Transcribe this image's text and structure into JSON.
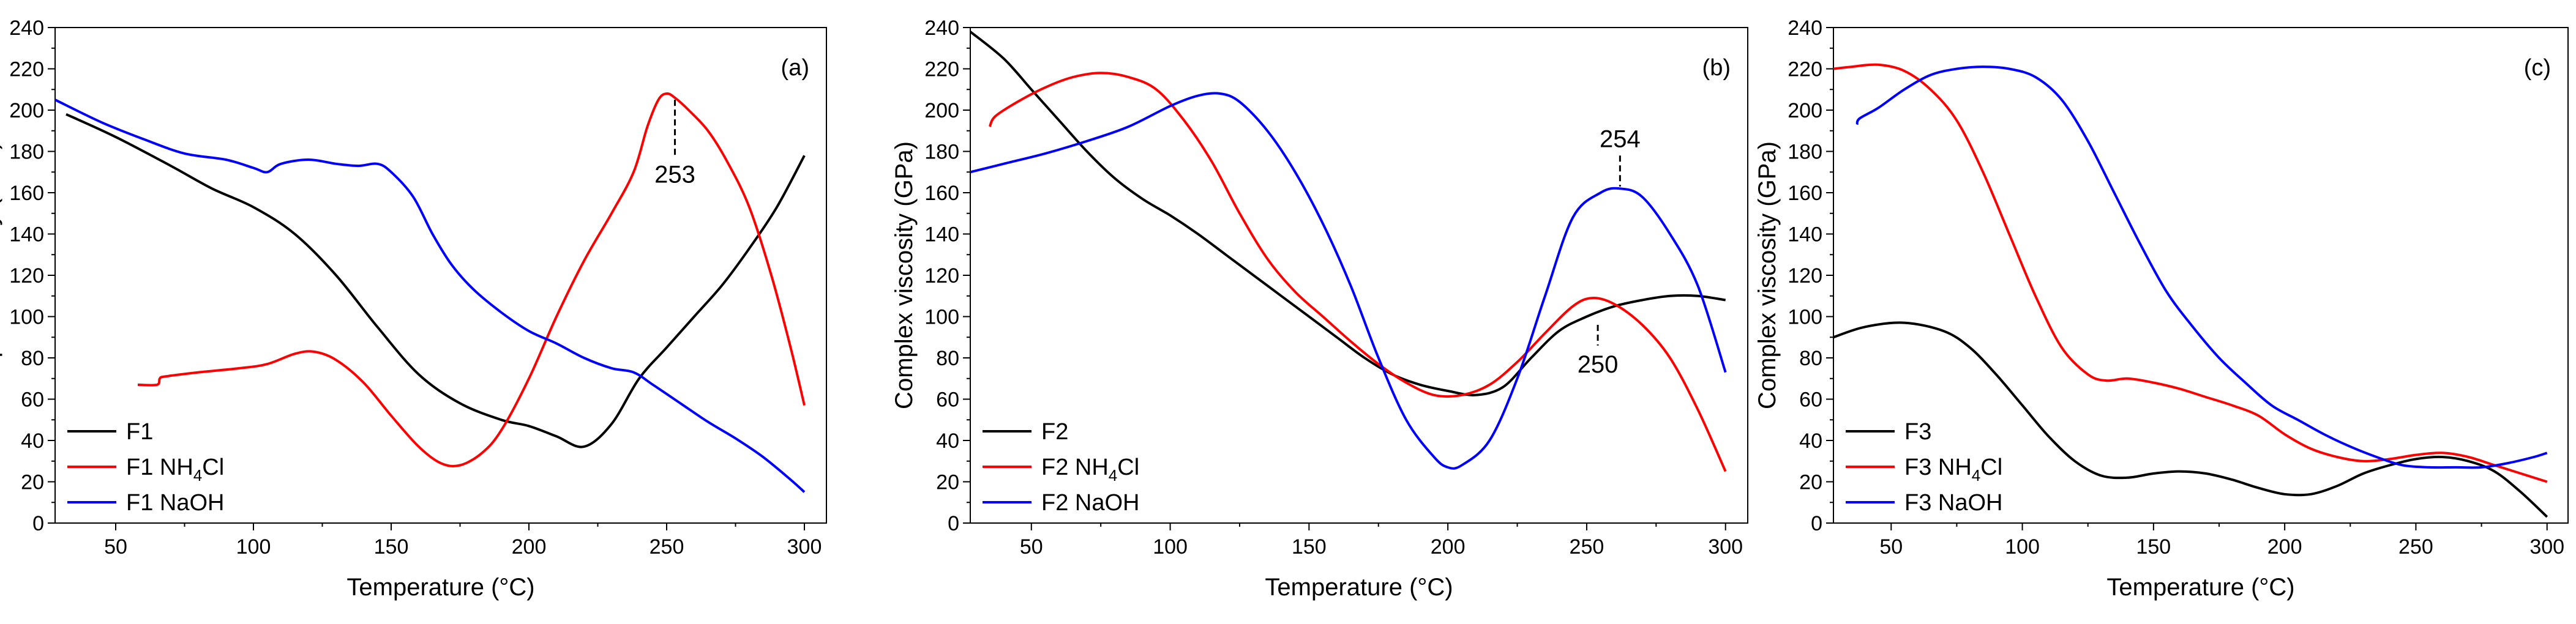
{
  "chart_data": [
    {
      "type": "line",
      "panel_label": "(a)",
      "xlabel": "Temperature (°C)",
      "ylabel": "Complex viscosity (GPa)",
      "xlim": [
        28,
        308
      ],
      "ylim": [
        0,
        240
      ],
      "xticks": [
        50,
        100,
        150,
        200,
        250,
        300
      ],
      "yticks": [
        0,
        20,
        40,
        60,
        80,
        100,
        120,
        140,
        160,
        180,
        200,
        220,
        240
      ],
      "legend_position": "bottom-left",
      "series": [
        {
          "name": "F1",
          "name_main": "F1 NH",
          "name_sub": "",
          "name_tail": "",
          "color": "#000000",
          "x": [
            32,
            50,
            70,
            85,
            100,
            115,
            130,
            145,
            160,
            175,
            190,
            200,
            210,
            220,
            230,
            240,
            250,
            260,
            270,
            280,
            290,
            300
          ],
          "y": [
            198,
            187,
            173,
            162,
            153,
            140,
            120,
            95,
            72,
            58,
            50,
            47,
            42,
            37,
            48,
            70,
            85,
            100,
            115,
            133,
            153,
            178
          ]
        },
        {
          "name": "F1 NH4Cl",
          "name_main": "F1 NH",
          "name_sub": "4",
          "name_tail": "Cl",
          "color": "#ff0000",
          "x": [
            58,
            65,
            66,
            68,
            80,
            95,
            105,
            115,
            122,
            130,
            140,
            150,
            160,
            168,
            175,
            183,
            190,
            200,
            210,
            220,
            230,
            238,
            243,
            247,
            250,
            253,
            258,
            265,
            272,
            280,
            288,
            295,
            300
          ],
          "y": [
            67,
            67,
            70,
            71,
            73,
            75,
            77,
            82,
            83,
            79,
            68,
            52,
            37,
            29,
            28,
            34,
            45,
            70,
            100,
            127,
            150,
            170,
            192,
            205,
            208,
            206,
            200,
            190,
            175,
            153,
            120,
            85,
            57
          ]
        },
        {
          "name": "F1 NaOH",
          "name_main": "F1 NaOH",
          "name_sub": "",
          "name_tail": "",
          "color": "#0000ff",
          "x": [
            28,
            45,
            60,
            75,
            90,
            100,
            105,
            110,
            120,
            130,
            138,
            145,
            150,
            158,
            165,
            172,
            180,
            190,
            200,
            210,
            220,
            230,
            238,
            245,
            255,
            265,
            275,
            285,
            295,
            300
          ],
          "y": [
            205,
            194,
            186,
            179,
            176,
            172,
            170,
            174,
            176,
            174,
            173,
            174,
            170,
            158,
            140,
            125,
            113,
            102,
            93,
            87,
            80,
            75,
            73,
            67,
            58,
            49,
            41,
            32,
            21,
            15
          ]
        }
      ],
      "annotations": [
        {
          "text": "253",
          "x": 253,
          "y_top": 205,
          "y_bottom": 178
        }
      ]
    },
    {
      "type": "line",
      "panel_label": "(b)",
      "xlabel": "Temperature (°C)",
      "ylabel": "Complex viscosity (GPa)",
      "xlim": [
        28,
        308
      ],
      "ylim": [
        0,
        240
      ],
      "xticks": [
        50,
        100,
        150,
        200,
        250,
        300
      ],
      "yticks": [
        0,
        20,
        40,
        60,
        80,
        100,
        120,
        140,
        160,
        180,
        200,
        220,
        240
      ],
      "legend_position": "bottom-left",
      "series": [
        {
          "name": "F2",
          "name_main": "F2",
          "name_sub": "",
          "name_tail": "",
          "color": "#000000",
          "x": [
            28,
            40,
            50,
            60,
            70,
            80,
            90,
            100,
            110,
            120,
            130,
            140,
            150,
            160,
            170,
            180,
            190,
            200,
            210,
            220,
            230,
            240,
            250,
            260,
            270,
            280,
            290,
            300
          ],
          "y": [
            238,
            225,
            210,
            195,
            180,
            167,
            157,
            149,
            140,
            130,
            120,
            110,
            100,
            90,
            80,
            72,
            67,
            64,
            62,
            66,
            80,
            93,
            100,
            105,
            108,
            110,
            110,
            108
          ]
        },
        {
          "name": "F2 NH4Cl",
          "name_main": "F2 NH",
          "name_sub": "4",
          "name_tail": "Cl",
          "color": "#ff0000",
          "x": [
            35,
            37,
            45,
            55,
            65,
            75,
            85,
            95,
            105,
            115,
            125,
            135,
            145,
            155,
            165,
            175,
            185,
            195,
            205,
            215,
            225,
            235,
            245,
            252,
            260,
            270,
            280,
            290,
            300
          ],
          "y": [
            192,
            197,
            204,
            211,
            216,
            218,
            216,
            210,
            195,
            175,
            150,
            128,
            112,
            100,
            88,
            77,
            68,
            62,
            62,
            67,
            78,
            92,
            105,
            109,
            106,
            96,
            80,
            55,
            25
          ]
        },
        {
          "name": "F2 NaOH",
          "name_main": "F2 NaOH",
          "name_sub": "",
          "name_tail": "",
          "color": "#0000ff",
          "x": [
            28,
            40,
            55,
            70,
            85,
            100,
            110,
            118,
            125,
            135,
            145,
            155,
            165,
            175,
            185,
            195,
            200,
            205,
            215,
            225,
            235,
            245,
            255,
            262,
            270,
            280,
            290,
            300
          ],
          "y": [
            170,
            174,
            179,
            185,
            192,
            202,
            207,
            208,
            204,
            190,
            170,
            145,
            115,
            80,
            50,
            32,
            27,
            28,
            40,
            70,
            110,
            148,
            160,
            162,
            158,
            140,
            115,
            73
          ]
        }
      ],
      "annotations": [
        {
          "text": "254",
          "x": 262,
          "y_top": 178,
          "y_bottom": 163,
          "label_pos": "above"
        },
        {
          "text": "250",
          "x": 254,
          "y_top": 96,
          "y_bottom": 86,
          "label_pos": "below"
        }
      ]
    },
    {
      "type": "line",
      "panel_label": "(c)",
      "xlabel": "Temperature (°C)",
      "ylabel": "Complex viscosity (GPa)",
      "xlim": [
        28,
        308
      ],
      "ylim": [
        0,
        240
      ],
      "xticks": [
        50,
        100,
        150,
        200,
        250,
        300
      ],
      "yticks": [
        0,
        20,
        40,
        60,
        80,
        100,
        120,
        140,
        160,
        180,
        200,
        220,
        240
      ],
      "legend_position": "bottom-left",
      "series": [
        {
          "name": "F3",
          "name_main": "F3",
          "name_sub": "",
          "name_tail": "",
          "color": "#000000",
          "x": [
            28,
            40,
            55,
            70,
            80,
            90,
            100,
            110,
            120,
            130,
            140,
            150,
            160,
            170,
            180,
            190,
            200,
            210,
            220,
            230,
            240,
            250,
            260,
            270,
            280,
            290,
            300
          ],
          "y": [
            90,
            95,
            97,
            93,
            85,
            72,
            57,
            42,
            30,
            23,
            22,
            24,
            25,
            24,
            21,
            17,
            14,
            14,
            18,
            24,
            28,
            31,
            32,
            30,
            25,
            15,
            3
          ]
        },
        {
          "name": "F3 NH4Cl",
          "name_main": "F3 NH",
          "name_sub": "4",
          "name_tail": "Cl",
          "color": "#ff0000",
          "x": [
            28,
            35,
            45,
            55,
            65,
            75,
            85,
            95,
            105,
            115,
            125,
            132,
            140,
            150,
            160,
            170,
            180,
            190,
            200,
            210,
            220,
            230,
            240,
            250,
            260,
            270,
            280,
            290,
            300
          ],
          "y": [
            220,
            221,
            222,
            219,
            210,
            195,
            170,
            140,
            110,
            85,
            72,
            69,
            70,
            68,
            65,
            61,
            57,
            52,
            43,
            36,
            32,
            30,
            31,
            33,
            34,
            32,
            28,
            24,
            20
          ]
        },
        {
          "name": "F3 NaOH",
          "name_main": "F3 NaOH",
          "name_sub": "",
          "name_tail": "",
          "color": "#0000ff",
          "x": [
            37,
            38,
            45,
            55,
            65,
            75,
            85,
            95,
            105,
            115,
            125,
            135,
            145,
            155,
            165,
            175,
            185,
            195,
            205,
            215,
            225,
            235,
            245,
            255,
            265,
            275,
            285,
            295,
            300
          ],
          "y": [
            193,
            196,
            201,
            210,
            217,
            220,
            221,
            220,
            216,
            205,
            185,
            160,
            135,
            112,
            95,
            80,
            68,
            57,
            50,
            43,
            37,
            32,
            28,
            27,
            27,
            27,
            29,
            32,
            34
          ]
        }
      ],
      "annotations": []
    }
  ]
}
